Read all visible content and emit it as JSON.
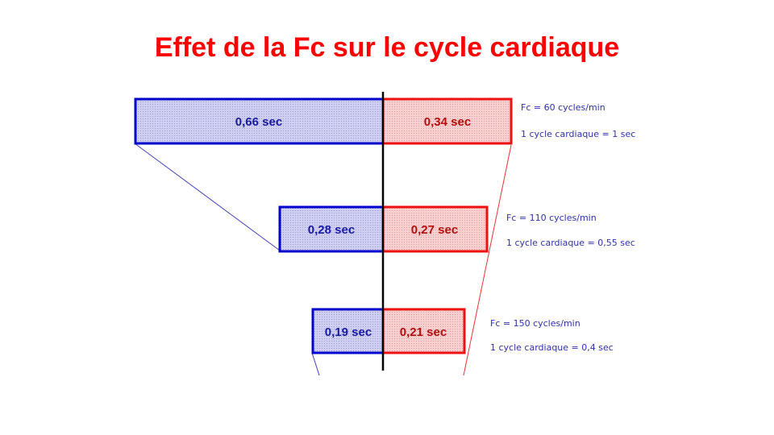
{
  "slide": {
    "title": "Effet de la Fc sur le cycle cardiaque"
  },
  "colors": {
    "title": "#ff0000",
    "diastole_stroke": "#0000cc",
    "diastole_fill": "#c8c8f0",
    "diastole_text": "#1a1aa0",
    "systole_stroke": "#ee1111",
    "systole_fill": "#f7cccc",
    "systole_text": "#b01010",
    "note_text": "#3030b0"
  },
  "rows": [
    {
      "left_value": "0,66 sec",
      "right_value": "0,34 sec",
      "note_fc": "Fc = 60 cycles/min",
      "note_cycle": "1 cycle cardiaque = 1 sec"
    },
    {
      "left_value": "0,28 sec",
      "right_value": "0,27 sec",
      "note_fc": "Fc = 110 cycles/min",
      "note_cycle": "1 cycle cardiaque = 0,55 sec"
    },
    {
      "left_value": "0,19 sec",
      "right_value": "0,21 sec",
      "note_fc": "Fc = 150 cycles/min",
      "note_cycle": "1 cycle cardiaque = 0,4 sec"
    }
  ]
}
